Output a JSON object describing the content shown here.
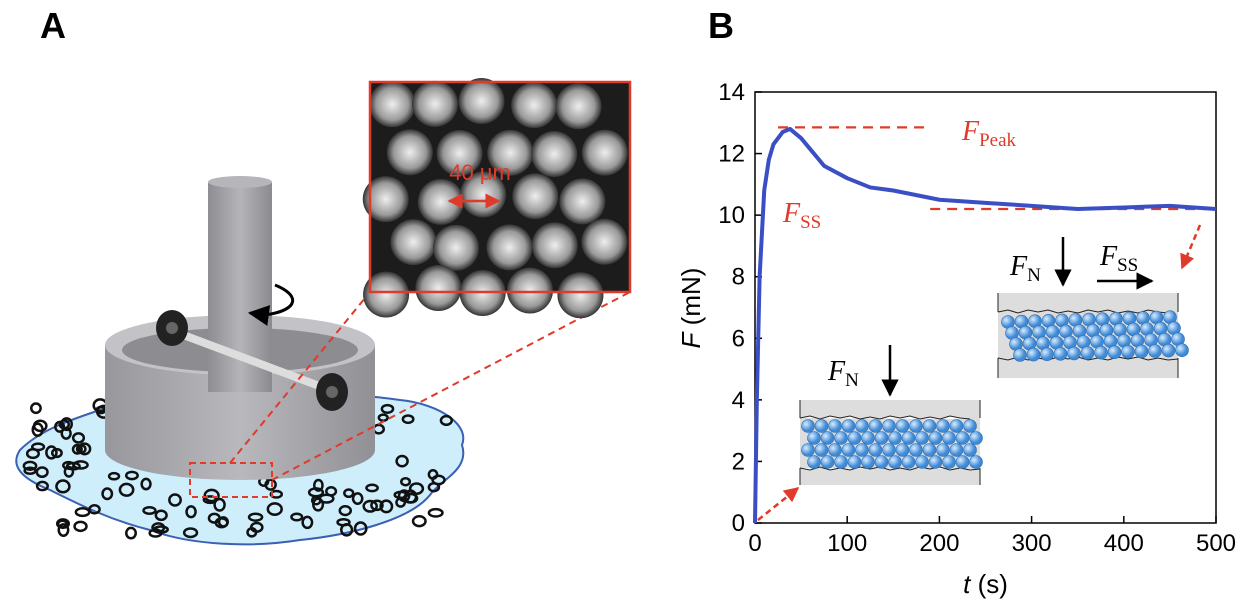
{
  "panel_labels": [
    "A",
    "B"
  ],
  "inset_scale": "40 μm",
  "chart_data": {
    "type": "line",
    "xlabel": {
      "symbol": "t",
      "unit": "(s)"
    },
    "ylabel": {
      "symbol": "F",
      "unit": "(mN)"
    },
    "x": [
      0,
      2,
      5,
      10,
      15,
      20,
      30,
      38,
      50,
      75,
      100,
      125,
      150,
      200,
      250,
      300,
      350,
      400,
      450,
      500
    ],
    "series": [
      {
        "color": "#3a4fc4",
        "values": [
          0,
          4,
          8,
          10.8,
          11.8,
          12.3,
          12.7,
          12.8,
          12.5,
          11.6,
          11.2,
          10.9,
          10.8,
          10.5,
          10.4,
          10.3,
          10.2,
          10.25,
          10.3,
          10.2
        ]
      }
    ],
    "xlim": [
      0,
      500
    ],
    "xticks": [
      0,
      100,
      200,
      300,
      400,
      500
    ],
    "ylim": [
      0,
      14
    ],
    "yticks": [
      0,
      2,
      4,
      6,
      8,
      10,
      12,
      14
    ],
    "reference_lines": [
      {
        "value": 12.85,
        "color": "#e03a2a"
      },
      {
        "value": 10.2,
        "color": "#e03a2a"
      }
    ],
    "annotations": [
      {
        "symbol": "F",
        "subscript": "Peak"
      },
      {
        "symbol": "F",
        "subscript": "SS"
      },
      {
        "symbol": "F",
        "subscript": "N"
      },
      {
        "symbol": "F",
        "subscript": "N"
      },
      {
        "symbol": "F",
        "subscript": "SS"
      }
    ]
  }
}
